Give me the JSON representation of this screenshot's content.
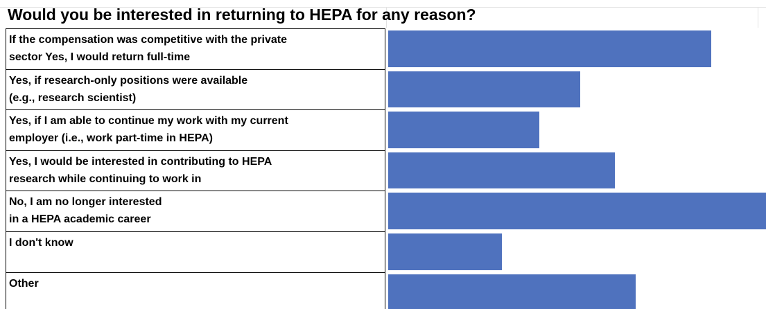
{
  "chart_data": {
    "type": "bar",
    "orientation": "horizontal",
    "title": "Would you be interested in returning to HEPA for any reason?",
    "categories": [
      "If the compensation was competitive with the private\nsector Yes, I would return full-time",
      "Yes, if research-only positions were available\n(e.g., research scientist)",
      "Yes, if I am able to continue my work with my current\nemployer (i.e., work part-time in HEPA)",
      "Yes, I would be interested in contributing to HEPA\nresearch while continuing to work in",
      "No, I am no longer interested\nin a HEPA academic career",
      "I don't know",
      "Other"
    ],
    "values": [
      47,
      28,
      22,
      33,
      55,
      16.5,
      36
    ],
    "color": "#4f72be"
  }
}
